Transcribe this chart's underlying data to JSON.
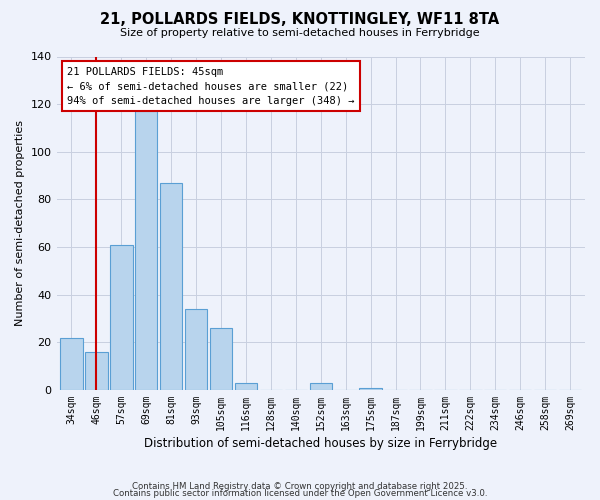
{
  "title": "21, POLLARDS FIELDS, KNOTTINGLEY, WF11 8TA",
  "subtitle": "Size of property relative to semi-detached houses in Ferrybridge",
  "xlabel": "Distribution of semi-detached houses by size in Ferrybridge",
  "ylabel": "Number of semi-detached properties",
  "bar_labels": [
    "34sqm",
    "46sqm",
    "57sqm",
    "69sqm",
    "81sqm",
    "93sqm",
    "105sqm",
    "116sqm",
    "128sqm",
    "140sqm",
    "152sqm",
    "163sqm",
    "175sqm",
    "187sqm",
    "199sqm",
    "211sqm",
    "222sqm",
    "234sqm",
    "246sqm",
    "258sqm",
    "269sqm"
  ],
  "bar_values": [
    22,
    16,
    61,
    117,
    87,
    34,
    26,
    3,
    0,
    0,
    3,
    0,
    1,
    0,
    0,
    0,
    0,
    0,
    0,
    0,
    0
  ],
  "bar_color": "#b8d4ed",
  "bar_edge_color": "#5a9fd4",
  "ylim": [
    0,
    140
  ],
  "yticks": [
    0,
    20,
    40,
    60,
    80,
    100,
    120,
    140
  ],
  "vline_x": 1.0,
  "vline_color": "#cc0000",
  "annotation_title": "21 POLLARDS FIELDS: 45sqm",
  "annotation_line1": "← 6% of semi-detached houses are smaller (22)",
  "annotation_line2": "94% of semi-detached houses are larger (348) →",
  "annotation_box_color": "#ffffff",
  "annotation_box_edge": "#cc0000",
  "bg_color": "#eef2fb",
  "grid_color": "#c8cfe0",
  "footer1": "Contains HM Land Registry data © Crown copyright and database right 2025.",
  "footer2": "Contains public sector information licensed under the Open Government Licence v3.0."
}
